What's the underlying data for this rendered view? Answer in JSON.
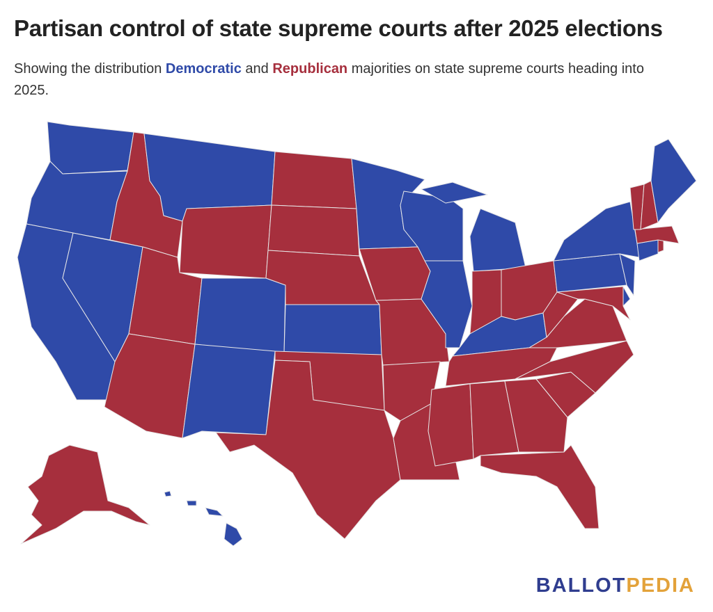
{
  "header": {
    "title": "Partisan control of state supreme courts after 2025 elections",
    "subtitle_start": "Showing the distribution",
    "subtitle_middle": "and",
    "subtitle_end": "majorities on state supreme courts heading into 2025."
  },
  "parties": [
    {
      "label": "Democratic",
      "color": "#2f4aa8"
    },
    {
      "label": "Republican",
      "color": "#a62f3d"
    }
  ],
  "logo": {
    "first": "BALLOT",
    "second": "PEDIA"
  }
}
